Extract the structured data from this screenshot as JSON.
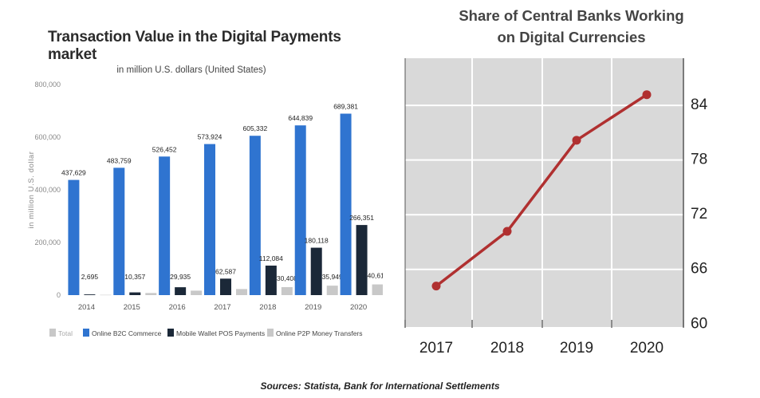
{
  "left_chart_title": "Transaction Value in the Digital Payments market",
  "left_chart_subtitle": "in million U.S. dollars (United States)",
  "right_chart_title_line1": "Share of Central Banks Working",
  "right_chart_title_line2": "on Digital Currencies",
  "source": "Sources: Statista, Bank for International Settlements",
  "colors": {
    "total": "#c8c8c8",
    "online_b2c": "#2f74d0",
    "mobile_wallet": "#1b2838",
    "p2p": "#c8c8c8",
    "line": "#b03030",
    "plot_bg": "#d9d9d9"
  },
  "chart_data": [
    {
      "type": "bar",
      "title": "Transaction Value in the Digital Payments market",
      "subtitle": "in million U.S. dollars (United States)",
      "xlabel": "",
      "ylabel": "in million U.S. dollar",
      "ylim": [
        0,
        800000
      ],
      "yticks": [
        0,
        200000,
        400000,
        600000,
        800000
      ],
      "ytick_labels": [
        "0",
        "200,000",
        "400,000",
        "600,000",
        "800,000"
      ],
      "categories": [
        "2014",
        "2015",
        "2016",
        "2017",
        "2018",
        "2019",
        "2020"
      ],
      "series": [
        {
          "name": "Online B2C Commerce",
          "values": [
            437629,
            483759,
            526452,
            573924,
            605332,
            644839,
            689381
          ],
          "labels": [
            "437,629",
            "483,759",
            "526,452",
            "573,924",
            "605,332",
            "644,839",
            "689,381"
          ]
        },
        {
          "name": "Mobile Wallet POS Payments",
          "values": [
            2695,
            10357,
            29935,
            62587,
            112084,
            180118,
            266351
          ],
          "labels": [
            "2,695",
            "10,357",
            "29,935",
            "62,587",
            "112,084",
            "180,118",
            "266,351"
          ]
        },
        {
          "name": "Online P2P Money Transfers",
          "values": [
            1000,
            8000,
            17000,
            23000,
            30408,
            35949,
            40612
          ],
          "labels": [
            "",
            "",
            "",
            "",
            "30,408",
            "35,949",
            "40,612"
          ]
        }
      ],
      "legend": [
        "Total",
        "Online B2C Commerce",
        "Mobile Wallet POS Payments",
        "Online P2P Money Transfers"
      ],
      "legend_position": "bottom",
      "grid": false
    },
    {
      "type": "line",
      "title": "Share of Central Banks Working on Digital Currencies",
      "x": [
        "2017",
        "2018",
        "2019",
        "2020"
      ],
      "y": [
        64,
        70,
        80,
        85
      ],
      "ylim": [
        59.5,
        89
      ],
      "yticks": [
        60,
        66,
        72,
        78,
        84
      ],
      "grid": true,
      "yaxis_position": "right"
    }
  ]
}
